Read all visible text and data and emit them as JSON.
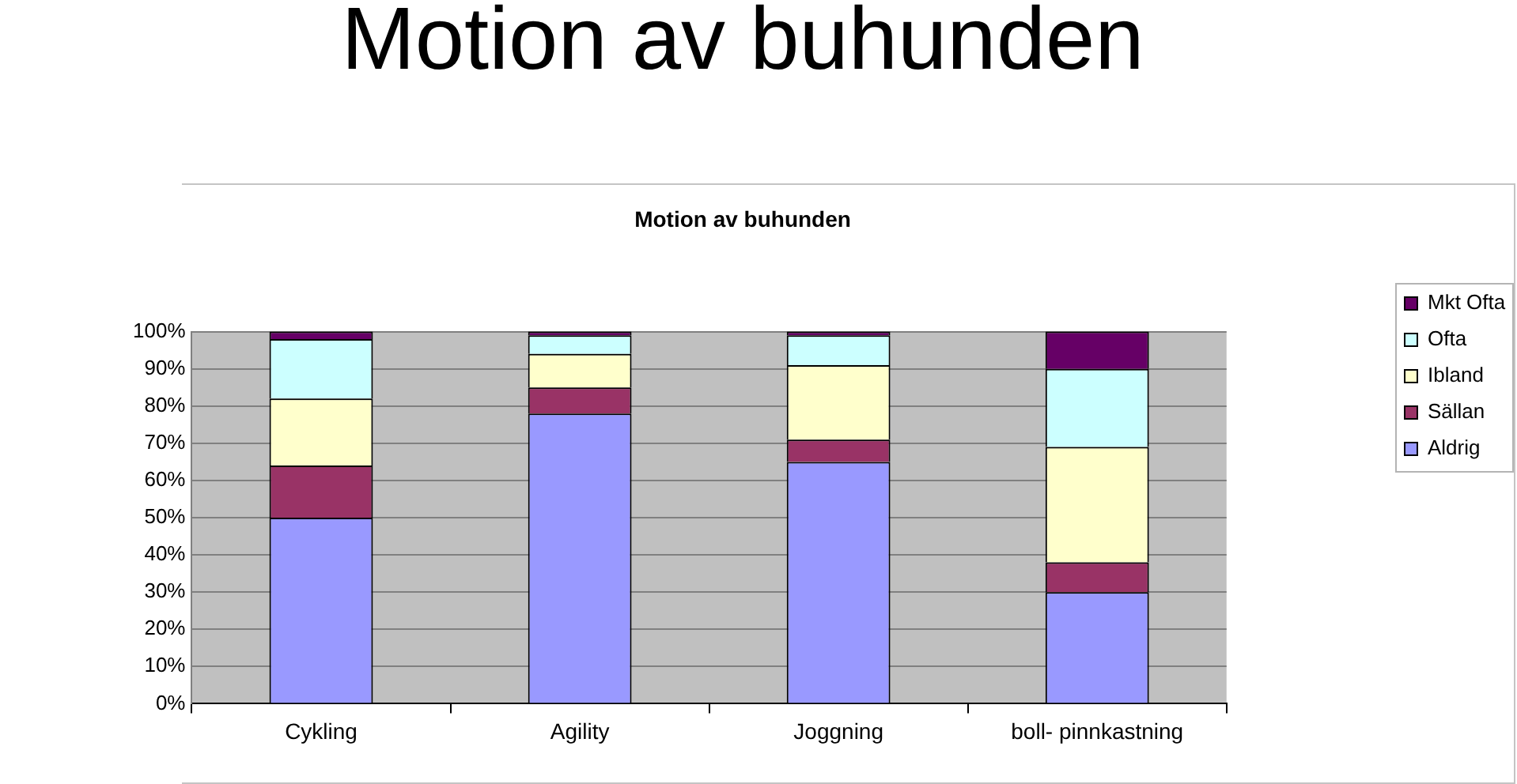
{
  "chart_data": {
    "type": "bar",
    "title": "Motion av buhunden",
    "subtitle": "Motion av buhunden",
    "categories": [
      "Cykling",
      "Agility",
      "Joggning",
      "boll- pinnkastning"
    ],
    "series": [
      {
        "name": "Aldrig",
        "color": "#9999ff",
        "values": [
          50,
          78,
          65,
          30
        ]
      },
      {
        "name": "Sällan",
        "color": "#993366",
        "values": [
          14,
          7,
          6,
          8
        ]
      },
      {
        "name": "Ibland",
        "color": "#ffffcc",
        "values": [
          18,
          9,
          20,
          31
        ]
      },
      {
        "name": "Ofta",
        "color": "#ccffff",
        "values": [
          16,
          5,
          8,
          21
        ]
      },
      {
        "name": "Mkt Ofta",
        "color": "#660066",
        "values": [
          2,
          1,
          1,
          10
        ]
      }
    ],
    "stacked": true,
    "ylim": [
      0,
      100
    ],
    "yticks": [
      {
        "value": 0,
        "label": "0%"
      },
      {
        "value": 10,
        "label": "10%"
      },
      {
        "value": 20,
        "label": "20%"
      },
      {
        "value": 30,
        "label": "30%"
      },
      {
        "value": 40,
        "label": "40%"
      },
      {
        "value": 50,
        "label": "50%"
      },
      {
        "value": 60,
        "label": "60%"
      },
      {
        "value": 70,
        "label": "70%"
      },
      {
        "value": 80,
        "label": "80%"
      },
      {
        "value": 90,
        "label": "90%"
      },
      {
        "value": 100,
        "label": "100%"
      }
    ],
    "grid": "y",
    "legend": "right"
  }
}
